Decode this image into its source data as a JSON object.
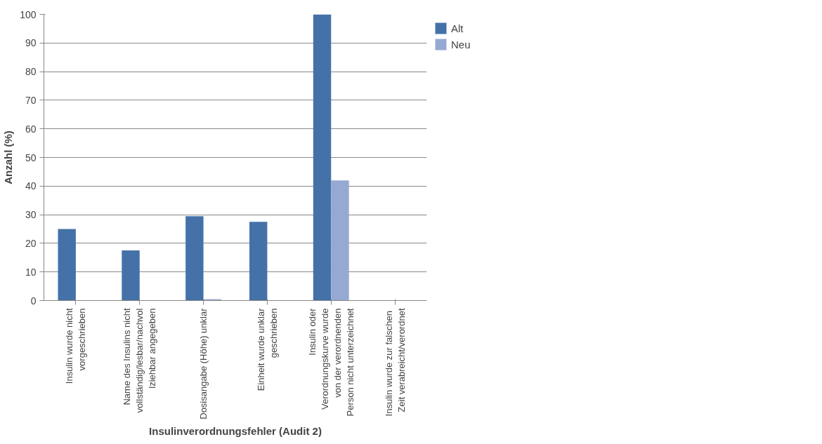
{
  "chart_data": {
    "type": "bar",
    "xlabel": "Insulinverordnungsfehler (Audit 2)",
    "ylabel": "Anzahl (%)",
    "categories": [
      "Insulin wurde nicht\nvorgeschrieben",
      "Name des Insulins nicht\nvollständig/lesbar/nachvol\nlziehbar angegeben",
      "Dosisangabe (Höhe) unklar",
      "Einheit wurde unklar\ngeschrieben",
      "Insulin oder\nVerordnungskurve wurde\nvon der verordnenden\nPerson nicht unterzeichnet",
      "Insulin wurde  zur falschen\nZeit verabreicht/verordnet"
    ],
    "series": [
      {
        "name": "Alt",
        "color": "#4472a8",
        "values": [
          25,
          17.5,
          29.5,
          27.5,
          100,
          0
        ]
      },
      {
        "name": "Neu",
        "color": "#95a9d2",
        "values": [
          0,
          0,
          0.5,
          0,
          42,
          0
        ]
      }
    ],
    "ylim": [
      0,
      100
    ],
    "yticks": [
      0,
      10,
      20,
      30,
      40,
      50,
      60,
      70,
      80,
      90,
      100
    ],
    "grid": "y",
    "legend": "right"
  }
}
